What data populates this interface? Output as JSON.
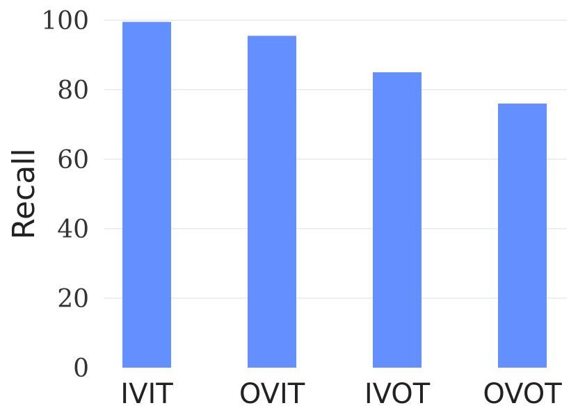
{
  "chart_data": {
    "type": "bar",
    "categories": [
      "IVIT",
      "OVIT",
      "IVOT",
      "OVOT"
    ],
    "values": [
      99.5,
      95.5,
      85.0,
      76.0
    ],
    "title": "",
    "xlabel": "",
    "ylabel": "Recall",
    "ylim": [
      0,
      100
    ],
    "yticks": [
      "0",
      "20",
      "40",
      "60",
      "80",
      "100"
    ],
    "grid": true,
    "legend": "none",
    "bar_color": "#648FFF"
  }
}
